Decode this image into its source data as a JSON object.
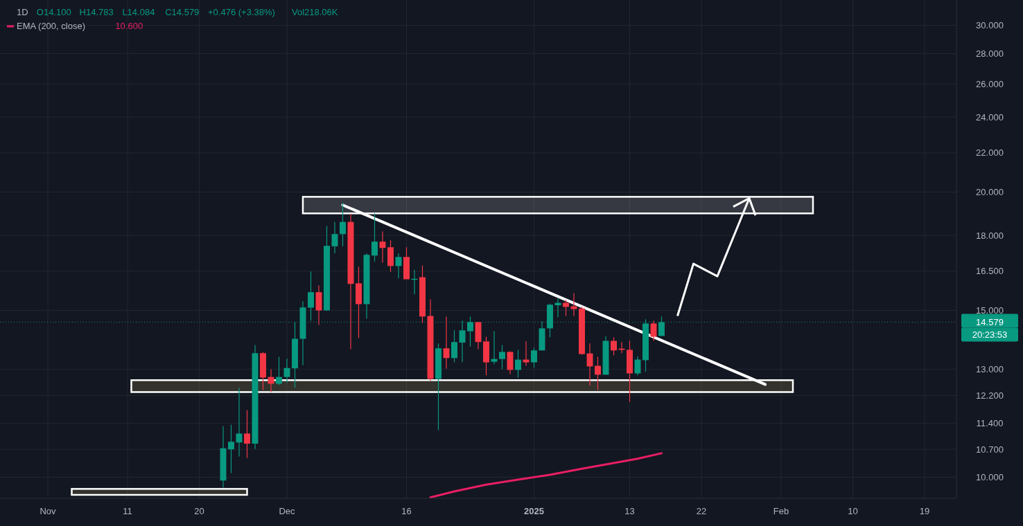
{
  "chart_data": {
    "type": "candlestick",
    "title": "1D",
    "annotations": [
      "O14.100",
      "H14.783",
      "L14.084",
      "C14.579",
      "+0.476 (+3.38%)",
      "Vol218.06K",
      "10.600",
      "20:23:53"
    ],
    "x": [
      "2024-11-23",
      "2024-11-24",
      "2024-11-25",
      "2024-11-26",
      "2024-11-27",
      "2024-11-28",
      "2024-11-29",
      "2024-11-30",
      "2024-12-01",
      "2024-12-02",
      "2024-12-03",
      "2024-12-04",
      "2024-12-05",
      "2024-12-06",
      "2024-12-07",
      "2024-12-08",
      "2024-12-09",
      "2024-12-10",
      "2024-12-11",
      "2024-12-12",
      "2024-12-13",
      "2024-12-14",
      "2024-12-15",
      "2024-12-16",
      "2024-12-17",
      "2024-12-18",
      "2024-12-19",
      "2024-12-20",
      "2024-12-21",
      "2024-12-22",
      "2024-12-23",
      "2024-12-24",
      "2024-12-25",
      "2024-12-26",
      "2024-12-27",
      "2024-12-28",
      "2024-12-29",
      "2024-12-30",
      "2024-12-31",
      "2025-01-01",
      "2025-01-02",
      "2025-01-03",
      "2025-01-04",
      "2025-01-05",
      "2025-01-06",
      "2025-01-07",
      "2025-01-08",
      "2025-01-09",
      "2025-01-10",
      "2025-01-11",
      "2025-01-12",
      "2025-01-13",
      "2025-01-14",
      "2025-01-15",
      "2025-01-16",
      "2025-01-17"
    ],
    "ohlc": [
      [
        9.92,
        11.32,
        9.75,
        10.73
      ],
      [
        10.7,
        11.36,
        10.1,
        10.9
      ],
      [
        10.88,
        12.43,
        10.52,
        11.12
      ],
      [
        11.12,
        11.77,
        10.48,
        10.85
      ],
      [
        10.85,
        13.79,
        10.71,
        13.52
      ],
      [
        13.52,
        13.55,
        12.36,
        12.74
      ],
      [
        12.76,
        13.0,
        12.3,
        12.55
      ],
      [
        12.55,
        13.4,
        12.51,
        12.76
      ],
      [
        12.76,
        13.34,
        12.59,
        13.04
      ],
      [
        13.03,
        14.58,
        12.43,
        14.0
      ],
      [
        14.0,
        15.34,
        13.13,
        15.11
      ],
      [
        15.1,
        16.49,
        14.63,
        15.68
      ],
      [
        15.68,
        15.94,
        14.48,
        15.0
      ],
      [
        15.0,
        18.42,
        14.98,
        17.55
      ],
      [
        17.53,
        18.6,
        17.23,
        18.06
      ],
      [
        18.06,
        19.48,
        17.53,
        18.6
      ],
      [
        18.6,
        18.96,
        13.65,
        16.0
      ],
      [
        16.02,
        16.68,
        14.03,
        15.23
      ],
      [
        15.23,
        17.23,
        14.7,
        17.17
      ],
      [
        17.14,
        18.99,
        16.89,
        17.73
      ],
      [
        17.73,
        18.18,
        16.85,
        17.46
      ],
      [
        17.49,
        17.79,
        16.46,
        16.71
      ],
      [
        16.71,
        17.23,
        16.22,
        17.08
      ],
      [
        17.08,
        17.49,
        16.18,
        16.18
      ],
      [
        16.18,
        16.56,
        15.6,
        16.2
      ],
      [
        16.26,
        16.73,
        14.55,
        14.78
      ],
      [
        14.8,
        15.41,
        12.64,
        12.7
      ],
      [
        12.7,
        13.84,
        11.21,
        13.68
      ],
      [
        13.68,
        14.78,
        13.02,
        13.36
      ],
      [
        13.36,
        14.29,
        13.22,
        13.89
      ],
      [
        13.87,
        14.63,
        13.22,
        14.29
      ],
      [
        14.26,
        14.78,
        13.74,
        14.58
      ],
      [
        14.58,
        14.58,
        13.65,
        13.89
      ],
      [
        13.91,
        14.07,
        12.81,
        13.22
      ],
      [
        13.24,
        14.26,
        13.16,
        13.33
      ],
      [
        13.33,
        13.79,
        13.0,
        13.56
      ],
      [
        13.56,
        13.58,
        12.85,
        12.98
      ],
      [
        12.98,
        13.63,
        12.74,
        13.31
      ],
      [
        13.31,
        13.91,
        13.11,
        13.22
      ],
      [
        13.22,
        13.7,
        13.05,
        13.61
      ],
      [
        13.61,
        14.61,
        13.61,
        14.36
      ],
      [
        14.36,
        15.25,
        14.05,
        15.21
      ],
      [
        15.19,
        15.44,
        14.75,
        15.28
      ],
      [
        15.28,
        15.39,
        14.8,
        15.13
      ],
      [
        15.15,
        15.64,
        14.8,
        15.05
      ],
      [
        15.07,
        15.13,
        13.47,
        13.49
      ],
      [
        13.51,
        13.84,
        12.49,
        13.09
      ],
      [
        13.11,
        13.4,
        12.36,
        12.83
      ],
      [
        12.83,
        14.09,
        12.83,
        13.93
      ],
      [
        13.93,
        14.05,
        13.45,
        13.61
      ],
      [
        13.67,
        13.89,
        13.52,
        13.63
      ],
      [
        13.63,
        13.93,
        12.01,
        12.87
      ],
      [
        12.87,
        13.42,
        12.81,
        13.31
      ],
      [
        13.29,
        14.68,
        12.92,
        14.53
      ],
      [
        14.53,
        14.63,
        13.93,
        14.07
      ],
      [
        14.1,
        14.783,
        14.084,
        14.579
      ]
    ],
    "colors": [
      "#089981",
      "#089981",
      "#089981",
      "#f23645",
      "#089981",
      "#f23645",
      "#f23645",
      "#089981",
      "#089981",
      "#089981",
      "#089981",
      "#089981",
      "#f23645",
      "#089981",
      "#089981",
      "#089981",
      "#f23645",
      "#f23645",
      "#089981",
      "#089981",
      "#f23645",
      "#f23645",
      "#089981",
      "#f23645",
      "#089981",
      "#f23645",
      "#f23645",
      "#089981",
      "#f23645",
      "#089981",
      "#089981",
      "#089981",
      "#f23645",
      "#f23645",
      "#089981",
      "#089981",
      "#f23645",
      "#089981",
      "#f23645",
      "#089981",
      "#089981",
      "#089981",
      "#089981",
      "#f23645",
      "#f23645",
      "#f23645",
      "#f23645",
      "#f23645",
      "#089981",
      "#f23645",
      "#f23645",
      "#f23645",
      "#089981",
      "#089981",
      "#f23645",
      "#089981"
    ],
    "series": [
      {
        "type": "line",
        "name": "EMA (200, close)",
        "color": "#e91e63",
        "x": [
          "2024-12-19",
          "2024-12-22",
          "2024-12-26",
          "2024-12-30",
          "2025-01-03",
          "2025-01-07",
          "2025-01-11",
          "2025-01-14",
          "2025-01-17"
        ],
        "values": [
          9.52,
          9.66,
          9.82,
          9.94,
          10.06,
          10.21,
          10.35,
          10.46,
          10.6
        ]
      },
      {
        "type": "line",
        "color": "#ffffff",
        "x": [
          "2024-12-08",
          "2025-01-30"
        ],
        "values": [
          19.38,
          12.53
        ]
      }
    ],
    "ref_lines": [
      {
        "axis": "y",
        "value": 14.579,
        "label": "14.579",
        "color": "#089981",
        "line_style": "dotted"
      }
    ],
    "log": "y",
    "grid": true,
    "legend": "top left",
    "xlim": [
      "2024-10-26",
      "2025-02-23"
    ],
    "xticks": [
      {
        "value": "2024-11-01",
        "label": "Nov"
      },
      {
        "value": "2024-11-11",
        "label": "11"
      },
      {
        "value": "2024-11-20",
        "label": "20"
      },
      {
        "value": "2024-12-01",
        "label": "Dec"
      },
      {
        "value": "2024-12-16",
        "label": "16"
      },
      {
        "value": "2025-01-01",
        "label": "2025"
      },
      {
        "value": "2025-01-13",
        "label": "13"
      },
      {
        "value": "2025-01-22",
        "label": "22"
      },
      {
        "value": "2025-02-01",
        "label": "Feb"
      },
      {
        "value": "2025-02-10",
        "label": "10"
      },
      {
        "value": "2025-02-19",
        "label": "19"
      }
    ],
    "ylim": [
      9.5,
      31.9
    ],
    "yticks": [
      {
        "value": 10,
        "label": "10.000"
      },
      {
        "value": 10.7,
        "label": "10.700"
      },
      {
        "value": 11.4,
        "label": "11.400"
      },
      {
        "value": 12.2,
        "label": "12.200"
      },
      {
        "value": 13,
        "label": "13.000"
      },
      {
        "value": 15,
        "label": "15.000"
      },
      {
        "value": 16.5,
        "label": "16.500"
      },
      {
        "value": 18,
        "label": "18.000"
      },
      {
        "value": 20,
        "label": "20.000"
      },
      {
        "value": 22,
        "label": "22.000"
      },
      {
        "value": 24,
        "label": "24.000"
      },
      {
        "value": 26,
        "label": "26.000"
      },
      {
        "value": 28,
        "label": "28.000"
      },
      {
        "value": 30,
        "label": "30.000"
      }
    ]
  }
}
